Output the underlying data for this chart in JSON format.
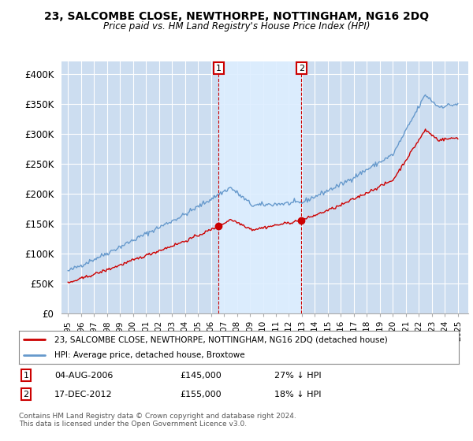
{
  "title": "23, SALCOMBE CLOSE, NEWTHORPE, NOTTINGHAM, NG16 2DQ",
  "subtitle": "Price paid vs. HM Land Registry's House Price Index (HPI)",
  "red_label": "23, SALCOMBE CLOSE, NEWTHORPE, NOTTINGHAM, NG16 2DQ (detached house)",
  "blue_label": "HPI: Average price, detached house, Broxtowe",
  "transaction1_date": "04-AUG-2006",
  "transaction1_price": 145000,
  "transaction1_note": "27% ↓ HPI",
  "transaction1_x": 2006.6,
  "transaction1_y": 145000,
  "transaction2_date": "17-DEC-2012",
  "transaction2_price": 155000,
  "transaction2_note": "18% ↓ HPI",
  "transaction2_x": 2012.96,
  "transaction2_y": 155000,
  "footer": "Contains HM Land Registry data © Crown copyright and database right 2024.\nThis data is licensed under the Open Government Licence v3.0.",
  "fig_bg": "#ffffff",
  "plot_bg": "#ccddf0",
  "shade_bg": "#ddeeff",
  "red_color": "#cc0000",
  "blue_color": "#6699cc",
  "grid_color": "#ffffff",
  "ylim": [
    0,
    420000
  ],
  "xlim_left": 1994.5,
  "xlim_right": 2025.8,
  "yticks": [
    0,
    50000,
    100000,
    150000,
    200000,
    250000,
    300000,
    350000,
    400000
  ],
  "ytick_labels": [
    "£0",
    "£50K",
    "£100K",
    "£150K",
    "£200K",
    "£250K",
    "£300K",
    "£350K",
    "£400K"
  ]
}
